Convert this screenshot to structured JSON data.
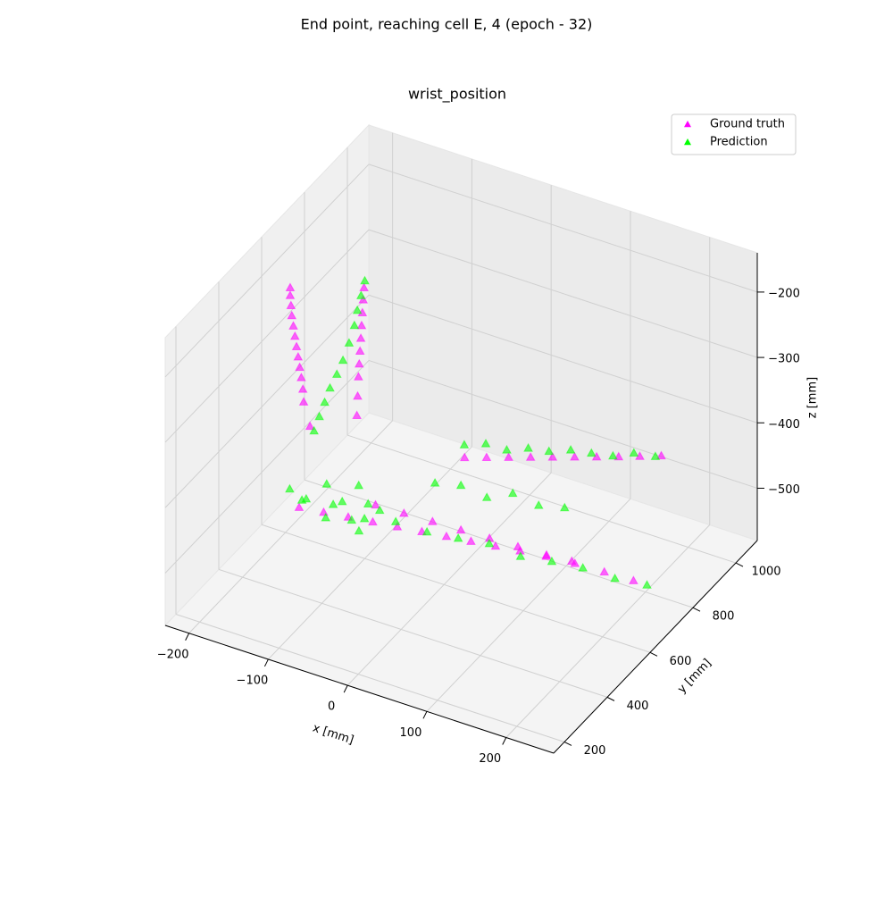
{
  "chart_data": {
    "type": "scatter3d",
    "title": "End point, reaching cell E, 4 (epoch - 32)",
    "subtitle": "wrist_position",
    "x_label": "x [mm]",
    "y_label": "y [mm]",
    "z_label": "z [mm]",
    "xlim": [
      -230,
      260
    ],
    "ylim": [
      150,
      1100
    ],
    "zlim": [
      -580,
      -140
    ],
    "xticks": [
      {
        "value": -200,
        "label": "−200"
      },
      {
        "value": -100,
        "label": "−100"
      },
      0,
      100,
      200
    ],
    "yticks": [
      200,
      400,
      600,
      800,
      1000
    ],
    "zticks": [
      {
        "value": -200,
        "label": "−200"
      },
      {
        "value": -300,
        "label": "−300"
      },
      {
        "value": -400,
        "label": "−400"
      },
      {
        "value": -500,
        "label": "−500"
      }
    ],
    "grid": true,
    "legend": "upper right",
    "series": [
      {
        "name": "Ground truth",
        "color": "#ff00ff",
        "x": [
          -194,
          -194,
          -193,
          -192,
          -190,
          -188,
          -186,
          -184,
          -182,
          -180,
          -178,
          -177,
          -169,
          -182,
          -183,
          -184,
          -185,
          -186,
          -187,
          -188,
          -189,
          -190,
          -191,
          -186,
          -158,
          -130,
          -102,
          -74,
          -46,
          -18,
          10,
          38,
          66,
          96,
          125,
          -37,
          -16,
          5,
          26,
          47,
          68,
          89,
          110,
          130,
          150,
          -115,
          -80,
          -45,
          -10,
          25,
          60,
          95,
          130,
          166,
          202
        ],
        "y": [
          600,
          600,
          600,
          600,
          600,
          600,
          600,
          600,
          600,
          600,
          600,
          600,
          600,
          900,
          900,
          900,
          900,
          900,
          900,
          900,
          900,
          900,
          900,
          612,
          623,
          634,
          645,
          656,
          667,
          678,
          689,
          700,
          711,
          722,
          734,
          833,
          858,
          883,
          908,
          933,
          958,
          983,
          1008,
          1033,
          1059,
          706,
          709,
          713,
          716,
          720,
          723,
          727,
          730,
          734,
          737
        ],
        "z": [
          -203,
          -215,
          -230,
          -245,
          -260,
          -275,
          -290,
          -305,
          -320,
          -335,
          -352,
          -371,
          -405,
          -301,
          -320,
          -340,
          -360,
          -380,
          -400,
          -420,
          -440,
          -470,
          -500,
          -540,
          -540,
          -540,
          -540,
          -540,
          -540,
          -540,
          -540,
          -540,
          -540,
          -540,
          -540,
          -480,
          -480,
          -480,
          -480,
          -480,
          -480,
          -480,
          -480,
          -480,
          -480,
          -540,
          -540,
          -540,
          -540,
          -540,
          -540,
          -540,
          -540,
          -540,
          -540
        ]
      },
      {
        "name": "Prediction",
        "color": "#00ff00",
        "x": [
          -181,
          -183,
          -185,
          -186,
          -190,
          -195,
          -200,
          -206,
          -210,
          -214,
          -218,
          -200,
          -190,
          -175,
          -160,
          -150,
          -140,
          -130,
          -120,
          -110,
          -100,
          -190,
          -153,
          -116,
          -79,
          -42,
          -5,
          32,
          69,
          106,
          143,
          181,
          219,
          -49,
          -27,
          -6,
          16,
          37,
          59,
          80,
          102,
          123,
          145,
          -60,
          -30,
          0,
          30,
          60,
          90
        ],
        "y": [
          900,
          890,
          880,
          870,
          860,
          850,
          840,
          830,
          820,
          810,
          800,
          620,
          660,
          700,
          640,
          680,
          720,
          650,
          690,
          610,
          670,
          640,
          649,
          658,
          667,
          676,
          685,
          693,
          702,
          711,
          719,
          728,
          737,
          876,
          895,
          915,
          934,
          953,
          973,
          992,
          1011,
          1031,
          1050,
          780,
          790,
          800,
          810,
          820,
          830
        ],
        "z": [
          -290,
          -310,
          -330,
          -350,
          -375,
          -400,
          -420,
          -440,
          -460,
          -480,
          -500,
          -520,
          -545,
          -530,
          -555,
          -540,
          -525,
          -550,
          -535,
          -545,
          -530,
          -540,
          -535,
          -545,
          -538,
          -542,
          -540,
          -536,
          -544,
          -540,
          -538,
          -542,
          -540,
          -480,
          -476,
          -484,
          -479,
          -482,
          -478,
          -481,
          -483,
          -477,
          -480,
          -510,
          -505,
          -515,
          -500,
          -510,
          -505
        ]
      }
    ]
  }
}
